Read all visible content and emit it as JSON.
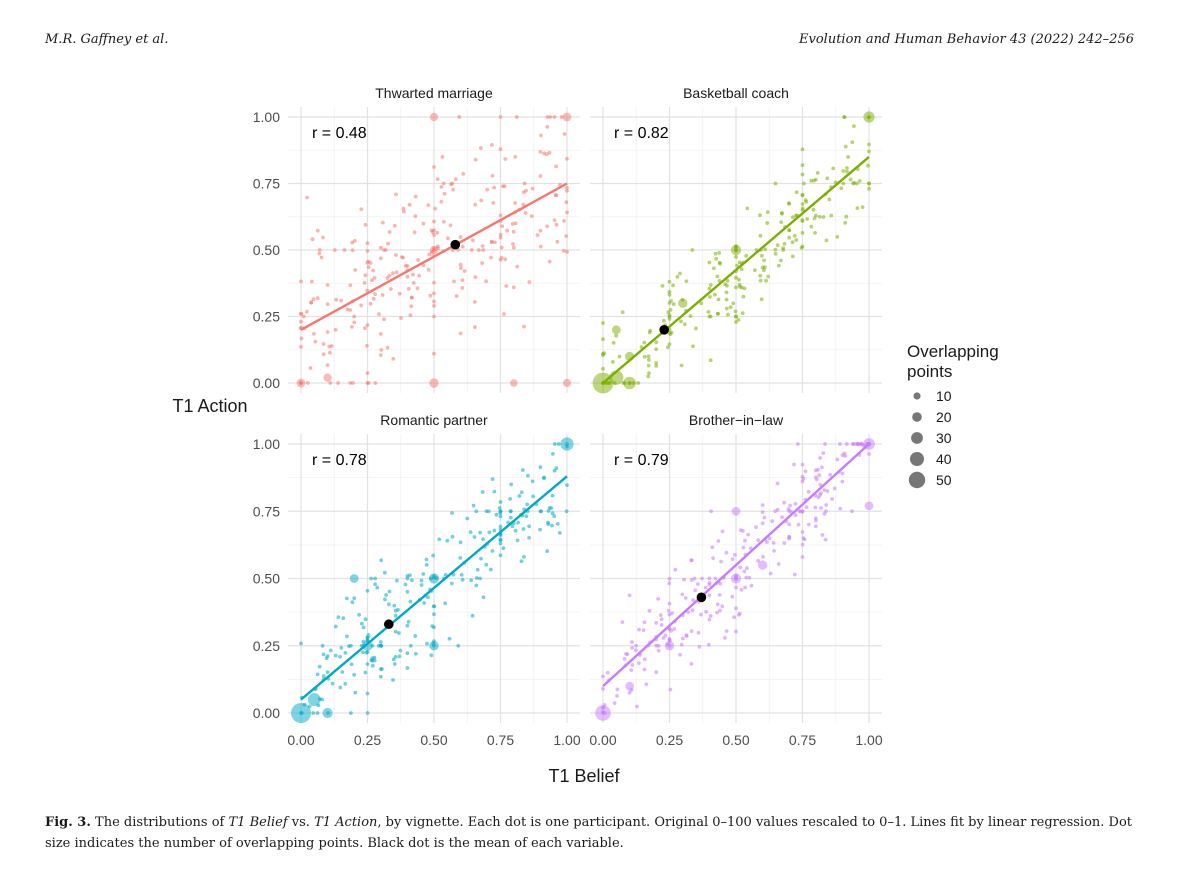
{
  "header": {
    "left": "M.R. Gaffney et al.",
    "right": "Evolution and Human Behavior 43 (2022) 242–256"
  },
  "caption": {
    "label": "Fig. 3.",
    "part1": " The distributions of ",
    "em1": "T1 Belief",
    "part2": " vs. ",
    "em2": "T1 Action",
    "part3": ", by vignette. Each dot is one participant. Original 0–100 values rescaled to 0–1. Lines fit by linear regression. Dot size indicates the number of overlapping points. Black dot is the mean of each variable."
  },
  "chart_data": {
    "type": "scatter",
    "xlabel": "T1 Belief",
    "ylabel": "T1 Action",
    "xlim": [
      0,
      1
    ],
    "ylim": [
      0,
      1
    ],
    "x_ticks": [
      "0.00",
      "0.25",
      "0.50",
      "0.75",
      "1.00"
    ],
    "y_ticks": [
      "0.00",
      "0.25",
      "0.50",
      "0.75",
      "1.00"
    ],
    "grid": true,
    "legend": {
      "title_lines": [
        "Overlapping",
        "points"
      ],
      "entries": [
        10,
        20,
        30,
        40,
        50
      ],
      "labels": [
        "10",
        "20",
        "30",
        "40",
        "50"
      ],
      "placement": "right",
      "color": "#777777"
    },
    "panels": [
      {
        "title": "Thwarted marriage",
        "r_label": "r = 0.48",
        "color": "#f8766d",
        "fit": {
          "x1": 0,
          "y1": 0.2,
          "x2": 1,
          "y2": 0.75
        },
        "mean": {
          "x": 0.58,
          "y": 0.52
        },
        "big_points": [
          {
            "x": 0.0,
            "y": 0.0,
            "n": 5
          },
          {
            "x": 0.5,
            "y": 0.0,
            "n": 6
          },
          {
            "x": 1.0,
            "y": 1.0,
            "n": 5
          },
          {
            "x": 0.5,
            "y": 1.0,
            "n": 4
          },
          {
            "x": 0.1,
            "y": 0.02,
            "n": 4
          },
          {
            "x": 0.8,
            "y": 0.0,
            "n": 3
          },
          {
            "x": 1.0,
            "y": 0.0,
            "n": 4
          },
          {
            "x": 0.5,
            "y": 0.5,
            "n": 4
          }
        ],
        "point_count": 280,
        "seed": 11,
        "slope": 0.55,
        "intercept": 0.2,
        "noise": 0.22
      },
      {
        "title": "Basketball coach",
        "r_label": "r = 0.82",
        "color": "#7cae00",
        "fit": {
          "x1": 0,
          "y1": 0.0,
          "x2": 1,
          "y2": 0.85
        },
        "mean": {
          "x": 0.23,
          "y": 0.2
        },
        "big_points": [
          {
            "x": 0.0,
            "y": 0.0,
            "n": 50
          },
          {
            "x": 0.05,
            "y": 0.02,
            "n": 20
          },
          {
            "x": 0.1,
            "y": 0.0,
            "n": 14
          },
          {
            "x": 0.5,
            "y": 0.5,
            "n": 8
          },
          {
            "x": 1.0,
            "y": 1.0,
            "n": 10
          },
          {
            "x": 0.1,
            "y": 0.1,
            "n": 6
          },
          {
            "x": 0.3,
            "y": 0.3,
            "n": 6
          },
          {
            "x": 0.05,
            "y": 0.2,
            "n": 5
          }
        ],
        "point_count": 240,
        "seed": 23,
        "slope": 0.85,
        "intercept": 0.0,
        "noise": 0.12
      },
      {
        "title": "Romantic partner",
        "r_label": "r = 0.78",
        "color": "#00a9c7",
        "fit": {
          "x1": 0,
          "y1": 0.05,
          "x2": 1,
          "y2": 0.88
        },
        "mean": {
          "x": 0.33,
          "y": 0.33
        },
        "big_points": [
          {
            "x": 0.0,
            "y": 0.0,
            "n": 45
          },
          {
            "x": 0.05,
            "y": 0.05,
            "n": 15
          },
          {
            "x": 1.0,
            "y": 1.0,
            "n": 16
          },
          {
            "x": 0.5,
            "y": 0.5,
            "n": 8
          },
          {
            "x": 0.25,
            "y": 0.25,
            "n": 8
          },
          {
            "x": 0.5,
            "y": 0.25,
            "n": 6
          },
          {
            "x": 0.2,
            "y": 0.5,
            "n": 5
          },
          {
            "x": 0.1,
            "y": 0.0,
            "n": 8
          }
        ],
        "point_count": 260,
        "seed": 37,
        "slope": 0.83,
        "intercept": 0.05,
        "noise": 0.14
      },
      {
        "title": "Brother−in−law",
        "r_label": "r = 0.79",
        "color": "#c77cff",
        "fit": {
          "x1": 0,
          "y1": 0.1,
          "x2": 1,
          "y2": 1.0
        },
        "mean": {
          "x": 0.37,
          "y": 0.43
        },
        "big_points": [
          {
            "x": 0.0,
            "y": 0.0,
            "n": 25
          },
          {
            "x": 1.0,
            "y": 1.0,
            "n": 12
          },
          {
            "x": 0.5,
            "y": 0.5,
            "n": 8
          },
          {
            "x": 0.25,
            "y": 0.25,
            "n": 6
          },
          {
            "x": 0.5,
            "y": 0.75,
            "n": 5
          },
          {
            "x": 0.1,
            "y": 0.1,
            "n": 5
          },
          {
            "x": 1.0,
            "y": 0.77,
            "n": 5
          },
          {
            "x": 0.6,
            "y": 0.55,
            "n": 6
          }
        ],
        "point_count": 270,
        "seed": 53,
        "slope": 0.9,
        "intercept": 0.1,
        "noise": 0.13
      }
    ]
  }
}
